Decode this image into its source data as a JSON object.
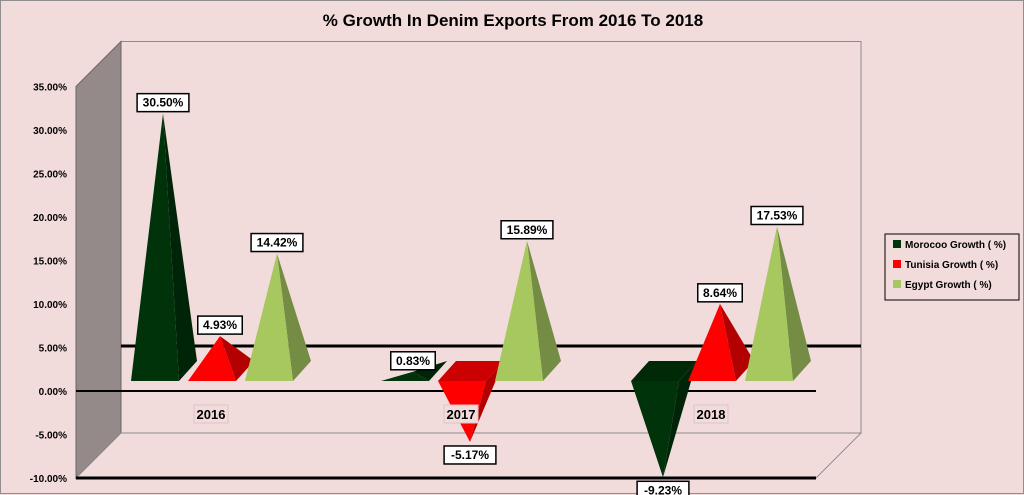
{
  "chart_data": {
    "type": "bar",
    "style": "3d-pyramid",
    "title": "% Growth In Denim Exports From 2016 To 2018",
    "categories": [
      "2016",
      "2017",
      "2018"
    ],
    "series": [
      {
        "name": "Morocoo Growth ( %)",
        "color": "#00330a",
        "values": [
          30.5,
          0.83,
          -9.23
        ],
        "labels": [
          "30.50%",
          "0.83%",
          "-9.23%"
        ]
      },
      {
        "name": "Tunisia Growth ( %)",
        "color": "#ff0000",
        "values": [
          4.93,
          -5.17,
          8.64
        ],
        "labels": [
          "4.93%",
          "-5.17%",
          "8.64%"
        ]
      },
      {
        "name": "Egypt Growth ( %)",
        "color": "#a6c85f",
        "values": [
          14.42,
          15.89,
          17.53
        ],
        "labels": [
          "14.42%",
          "15.89%",
          "17.53%"
        ]
      }
    ],
    "yticks": [
      "35.00%",
      "30.00%",
      "25.00%",
      "20.00%",
      "15.00%",
      "10.00%",
      "5.00%",
      "0.00%",
      "-5.00%",
      "-10.00%"
    ],
    "ylim": [
      -10,
      35
    ],
    "grid": false,
    "legend": "right"
  }
}
